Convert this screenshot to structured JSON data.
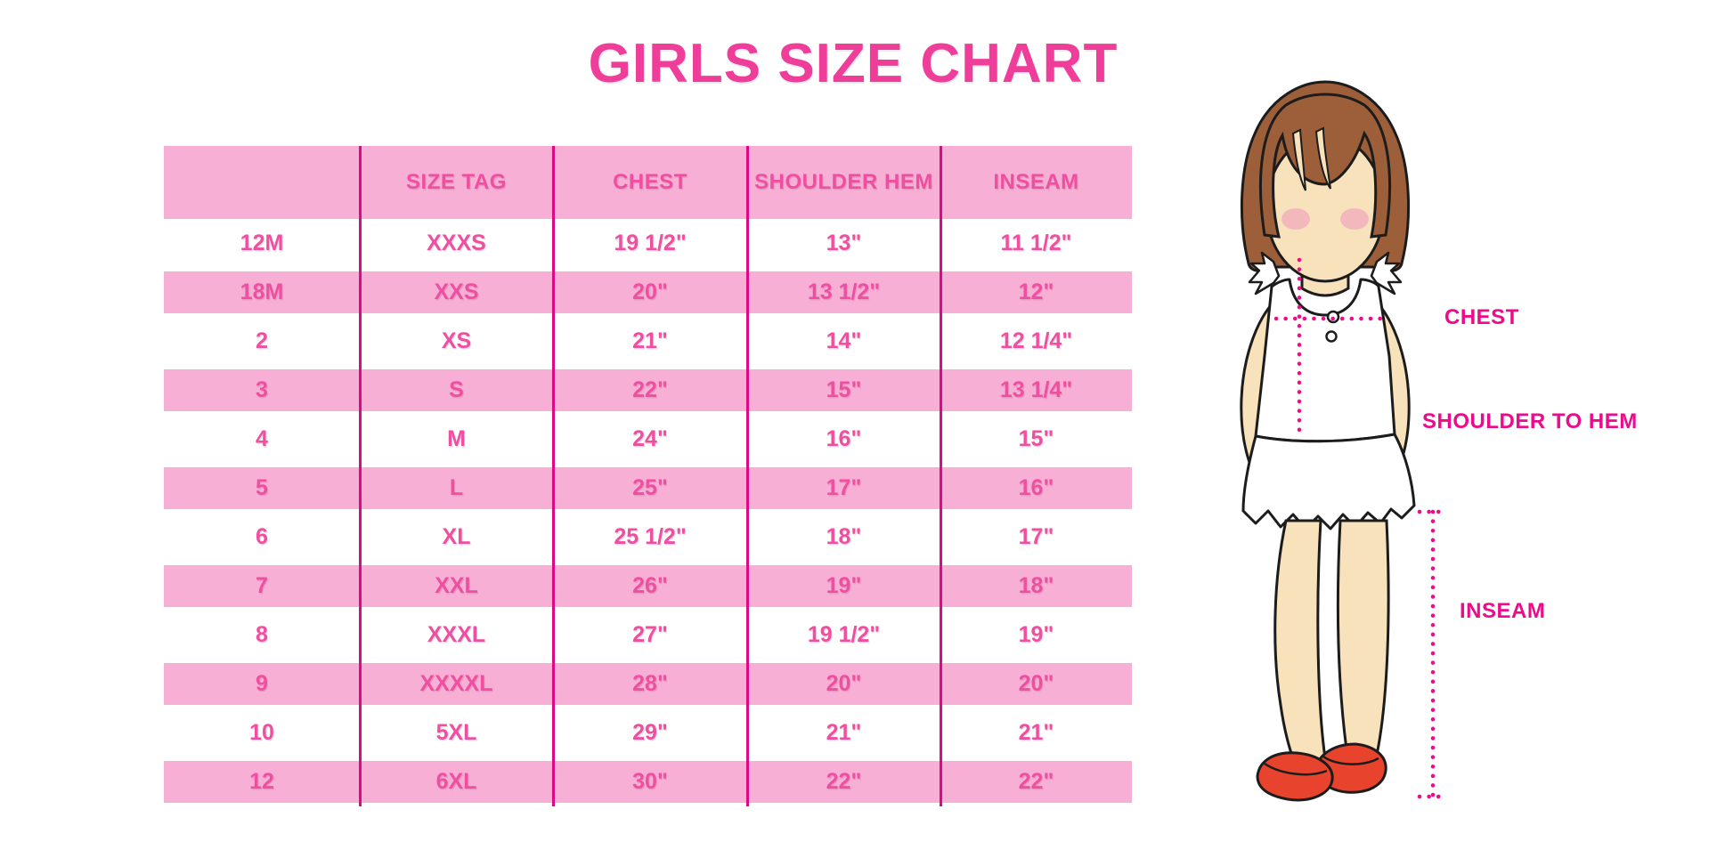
{
  "title": "GIRLS SIZE CHART",
  "chart_data": {
    "type": "table",
    "title": "GIRLS SIZE CHART",
    "columns": [
      "",
      "SIZE TAG",
      "CHEST",
      "SHOULDER HEM",
      "INSEAM"
    ],
    "rows": [
      [
        "12M",
        "XXXS",
        "19 1/2\"",
        "13\"",
        "11 1/2\""
      ],
      [
        "18M",
        "XXS",
        "20\"",
        "13 1/2\"",
        "12\""
      ],
      [
        "2",
        "XS",
        "21\"",
        "14\"",
        "12 1/4\""
      ],
      [
        "3",
        "S",
        "22\"",
        "15\"",
        "13 1/4\""
      ],
      [
        "4",
        "M",
        "24\"",
        "16\"",
        "15\""
      ],
      [
        "5",
        "L",
        "25\"",
        "17\"",
        "16\""
      ],
      [
        "6",
        "XL",
        "25 1/2\"",
        "18\"",
        "17\""
      ],
      [
        "7",
        "XXL",
        "26\"",
        "19\"",
        "18\""
      ],
      [
        "8",
        "XXXL",
        "27\"",
        "19 1/2\"",
        "19\""
      ],
      [
        "9",
        "XXXXL",
        "28\"",
        "20\"",
        "20\""
      ],
      [
        "10",
        "5XL",
        "29\"",
        "21\"",
        "21\""
      ],
      [
        "12",
        "6XL",
        "30\"",
        "22\"",
        "22\""
      ]
    ],
    "layout_hints": {
      "row_striping": "alternating white and pink bands starting white",
      "grid": "vertical magenta dividers only, no horizontal borders"
    }
  },
  "figure": {
    "chest_label": "CHEST",
    "shoulder_to_hem_label": "SHOULDER TO HEM",
    "inseam_label": "INSEAM"
  },
  "colors": {
    "title_pink": "#EF3E9A",
    "band_pink": "#F8AFD5",
    "table_text_pink": "#EF4FA0",
    "divider_magenta": "#DC0A86",
    "label_magenta": "#EB0B8B",
    "dotted_magenta": "#F00A8C",
    "hair_brown": "#9D5F39",
    "skin": "#F8E2BB",
    "blush": "#F2A9BC",
    "shoe_red": "#E8432C",
    "outline": "#1C1C1C",
    "background": "#FFFFFF"
  }
}
